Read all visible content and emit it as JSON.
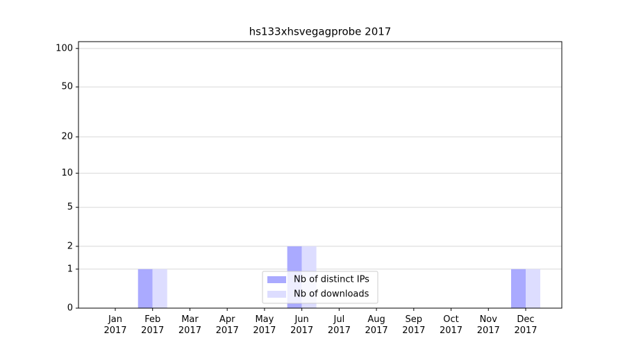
{
  "chart_data": {
    "type": "bar",
    "title": "hs133xhsvegagprobe 2017",
    "categories": [
      "Jan 2017",
      "Feb 2017",
      "Mar 2017",
      "Apr 2017",
      "May 2017",
      "Jun 2017",
      "Jul 2017",
      "Aug 2017",
      "Sep 2017",
      "Oct 2017",
      "Nov 2017",
      "Dec 2017"
    ],
    "series": [
      {
        "name": "Nb of distinct IPs",
        "color": "#aaaaff",
        "values": [
          0,
          1,
          0,
          0,
          0,
          2,
          0,
          0,
          0,
          0,
          0,
          1
        ]
      },
      {
        "name": "Nb of downloads",
        "color": "#ddddff",
        "values": [
          0,
          1,
          0,
          0,
          0,
          2,
          0,
          0,
          0,
          0,
          0,
          1
        ]
      }
    ],
    "yscale": "log1p",
    "ylim": [
      0,
      113
    ],
    "yticks": [
      0,
      1,
      2,
      5,
      10,
      20,
      50,
      100
    ],
    "grid": true,
    "legend": "lower center"
  }
}
